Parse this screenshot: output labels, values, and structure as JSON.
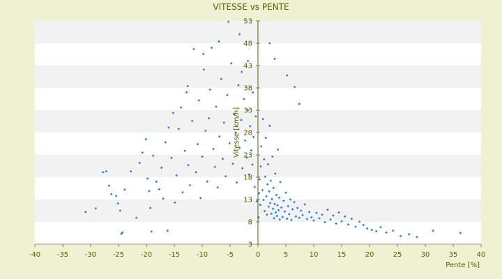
{
  "chart_data": {
    "type": "scatter",
    "title": "VITESSE vs PENTE",
    "xlabel": "Pente [%]",
    "ylabel": "Vitesse [km/h]",
    "xlim": [
      -40,
      40
    ],
    "ylim": [
      3,
      53
    ],
    "x_ticks": [
      -40,
      -35,
      -30,
      -25,
      -20,
      -15,
      -10,
      -5,
      0,
      5,
      10,
      15,
      20,
      25,
      30,
      35,
      40
    ],
    "y_ticks": [
      3,
      8,
      13,
      18,
      23,
      28,
      33,
      38,
      43,
      48,
      53
    ],
    "grid": "horizontal bands",
    "legend": "none",
    "colors": {
      "background": "#eef2d2",
      "plot_band_light": "#ffffff",
      "plot_band_dark": "#f2f2f2",
      "marker": "#2e7bcf",
      "axis": "#5a5a00"
    },
    "marker": "small blue diamond",
    "series": [
      {
        "points": [
          [
            -30.9,
            10.2
          ],
          [
            -29.1,
            11.0
          ],
          [
            -27.8,
            19.1
          ],
          [
            -27.2,
            19.3
          ],
          [
            -26.7,
            16.1
          ],
          [
            -26.3,
            14.2
          ],
          [
            -25.4,
            13.8
          ],
          [
            -25.1,
            12.1
          ],
          [
            -24.7,
            10.5
          ],
          [
            -24.5,
            5.3
          ],
          [
            -24.3,
            5.6
          ],
          [
            -23.9,
            15.2
          ],
          [
            -22.8,
            19.3
          ],
          [
            -21.8,
            8.9
          ],
          [
            -21.2,
            21.2
          ],
          [
            -20.7,
            23.5
          ],
          [
            -20.1,
            26.5
          ],
          [
            -19.8,
            17.7
          ],
          [
            -19.5,
            14.9
          ],
          [
            -19.3,
            11.1
          ],
          [
            -19.1,
            5.8
          ],
          [
            -18.8,
            22.8
          ],
          [
            -18.2,
            17.0
          ],
          [
            -17.7,
            15.3
          ],
          [
            -17.3,
            20.1
          ],
          [
            -17.0,
            13.2
          ],
          [
            -16.6,
            25.8
          ],
          [
            -16.2,
            6.0
          ],
          [
            -16.0,
            29.1
          ],
          [
            -15.5,
            22.3
          ],
          [
            -15.2,
            32.4
          ],
          [
            -14.9,
            12.3
          ],
          [
            -14.6,
            18.4
          ],
          [
            -14.2,
            28.8
          ],
          [
            -13.8,
            33.6
          ],
          [
            -13.5,
            14.6
          ],
          [
            -13.1,
            23.9
          ],
          [
            -12.8,
            37.0
          ],
          [
            -12.5,
            20.7
          ],
          [
            -12.2,
            16.2
          ],
          [
            -11.8,
            30.6
          ],
          [
            -11.5,
            46.7
          ],
          [
            -11.1,
            19.1
          ],
          [
            -10.8,
            25.4
          ],
          [
            -10.6,
            35.2
          ],
          [
            -10.3,
            13.3
          ],
          [
            -10.0,
            22.6
          ],
          [
            -9.7,
            42.1
          ],
          [
            -9.4,
            28.4
          ],
          [
            -9.1,
            17.0
          ],
          [
            -8.8,
            31.2
          ],
          [
            -8.6,
            37.6
          ],
          [
            -8.3,
            47.0
          ],
          [
            -8.0,
            24.3
          ],
          [
            -7.7,
            20.3
          ],
          [
            -7.5,
            33.8
          ],
          [
            -7.2,
            15.7
          ],
          [
            -6.9,
            27.1
          ],
          [
            -6.6,
            40.0
          ],
          [
            -6.3,
            22.1
          ],
          [
            -6.1,
            30.2
          ],
          [
            -5.8,
            18.2
          ],
          [
            -5.5,
            36.4
          ],
          [
            -5.3,
            52.8
          ],
          [
            -5.1,
            25.6
          ],
          [
            -4.8,
            43.5
          ],
          [
            -4.5,
            21.0
          ],
          [
            -4.3,
            32.1
          ],
          [
            -4.0,
            28.0
          ],
          [
            -3.8,
            16.8
          ],
          [
            -3.5,
            38.6
          ],
          [
            -3.3,
            24.6
          ],
          [
            -3.0,
            30.8
          ],
          [
            -2.8,
            20.0
          ],
          [
            -2.5,
            35.5
          ],
          [
            -2.3,
            26.2
          ],
          [
            -2.0,
            22.4
          ],
          [
            -1.8,
            33.0
          ],
          [
            -1.6,
            18.6
          ],
          [
            -1.4,
            29.4
          ],
          [
            -1.2,
            24.0
          ],
          [
            -1.0,
            20.8
          ],
          [
            -0.8,
            27.0
          ],
          [
            -0.6,
            15.8
          ],
          [
            -0.4,
            31.6
          ],
          [
            -0.2,
            12.6
          ],
          [
            0.1,
            9.0
          ],
          [
            0.2,
            14.4
          ],
          [
            0.3,
            17.5
          ],
          [
            0.4,
            11.8
          ],
          [
            0.5,
            20.4
          ],
          [
            0.6,
            24.9
          ],
          [
            0.8,
            15.1
          ],
          [
            0.9,
            31.0
          ],
          [
            1.0,
            12.9
          ],
          [
            1.1,
            22.0
          ],
          [
            1.2,
            10.4
          ],
          [
            1.3,
            18.1
          ],
          [
            1.4,
            26.8
          ],
          [
            1.5,
            13.7
          ],
          [
            1.6,
            9.6
          ],
          [
            1.7,
            16.4
          ],
          [
            1.8,
            20.9
          ],
          [
            1.9,
            11.4
          ],
          [
            2.0,
            14.8
          ],
          [
            2.1,
            29.5
          ],
          [
            2.2,
            12.2
          ],
          [
            2.3,
            17.2
          ],
          [
            2.4,
            9.8
          ],
          [
            2.5,
            13.1
          ],
          [
            2.6,
            22.6
          ],
          [
            2.7,
            10.9
          ],
          [
            2.8,
            15.6
          ],
          [
            2.9,
            8.8
          ],
          [
            3.0,
            12.0
          ],
          [
            3.1,
            18.8
          ],
          [
            3.2,
            10.1
          ],
          [
            3.3,
            14.0
          ],
          [
            3.4,
            9.3
          ],
          [
            3.5,
            11.7
          ],
          [
            3.6,
            24.2
          ],
          [
            3.7,
            10.6
          ],
          [
            3.8,
            13.4
          ],
          [
            3.9,
            8.5
          ],
          [
            4.0,
            16.9
          ],
          [
            4.2,
            11.2
          ],
          [
            4.4,
            9.1
          ],
          [
            4.6,
            12.7
          ],
          [
            4.8,
            10.3
          ],
          [
            5.0,
            14.5
          ],
          [
            5.2,
            8.7
          ],
          [
            5.4,
            11.5
          ],
          [
            5.6,
            9.7
          ],
          [
            5.8,
            13.0
          ],
          [
            6.0,
            8.4
          ],
          [
            6.2,
            10.8
          ],
          [
            6.5,
            12.4
          ],
          [
            6.8,
            9.2
          ],
          [
            7.1,
            11.1
          ],
          [
            7.4,
            8.9
          ],
          [
            7.7,
            10.5
          ],
          [
            8.0,
            9.5
          ],
          [
            8.4,
            11.9
          ],
          [
            8.8,
            8.6
          ],
          [
            9.2,
            10.2
          ],
          [
            9.6,
            9.0
          ],
          [
            10.0,
            8.3
          ],
          [
            10.5,
            10.0
          ],
          [
            11.0,
            8.8
          ],
          [
            11.5,
            9.6
          ],
          [
            12.0,
            7.9
          ],
          [
            12.5,
            10.7
          ],
          [
            13.0,
            8.5
          ],
          [
            13.5,
            9.4
          ],
          [
            14.0,
            7.6
          ],
          [
            14.5,
            10.1
          ],
          [
            15.0,
            8.1
          ],
          [
            15.6,
            9.2
          ],
          [
            16.2,
            7.4
          ],
          [
            16.8,
            8.7
          ],
          [
            17.5,
            6.9
          ],
          [
            18.2,
            8.0
          ],
          [
            18.9,
            7.3
          ],
          [
            19.6,
            6.5
          ],
          [
            20.4,
            6.2
          ],
          [
            21.2,
            5.9
          ],
          [
            22.0,
            6.8
          ],
          [
            23.0,
            5.6
          ],
          [
            24.2,
            6.0
          ],
          [
            25.6,
            4.8
          ],
          [
            27.1,
            5.2
          ],
          [
            28.5,
            4.6
          ],
          [
            31.4,
            6.0
          ],
          [
            36.3,
            5.5
          ],
          [
            2.1,
            48.0
          ],
          [
            3.0,
            44.5
          ],
          [
            5.2,
            40.8
          ],
          [
            6.6,
            38.2
          ],
          [
            7.4,
            34.4
          ],
          [
            -1.8,
            44.0
          ],
          [
            -3.3,
            50.0
          ],
          [
            -7.0,
            48.4
          ],
          [
            -9.8,
            45.6
          ],
          [
            -12.6,
            38.4
          ],
          [
            -2.9,
            41.6
          ],
          [
            -0.9,
            37.0
          ]
        ]
      }
    ]
  }
}
